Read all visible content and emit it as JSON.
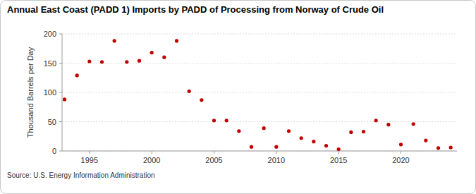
{
  "chart_data": {
    "type": "scatter",
    "title": "Annual East Coast (PADD 1) Imports by PADD of Processing from Norway of Crude Oil",
    "y_label": "Thousand Barrels per Day",
    "source": "Source: U.S. Energy Information Administration",
    "x": [
      1993,
      1994,
      1995,
      1996,
      1997,
      1998,
      1999,
      2000,
      2001,
      2002,
      2003,
      2004,
      2005,
      2006,
      2007,
      2008,
      2009,
      2010,
      2011,
      2012,
      2013,
      2014,
      2015,
      2016,
      2017,
      2018,
      2019,
      2020,
      2021,
      2022,
      2023,
      2024
    ],
    "values": [
      88,
      129,
      153,
      152,
      188,
      152,
      154,
      168,
      160,
      188,
      102,
      87,
      52,
      52,
      34,
      7,
      39,
      7,
      34,
      22,
      16,
      9,
      3,
      32,
      33,
      52,
      45,
      11,
      46,
      18,
      5,
      6
    ],
    "color": "#c00000",
    "marker": "circle",
    "xlim": [
      1992.8,
      2024.5
    ],
    "xticks": [
      1995,
      2000,
      2005,
      2010,
      2015,
      2020
    ],
    "ylim": [
      0,
      200
    ],
    "yticks": [
      0,
      50,
      100,
      150,
      200
    ],
    "grid": true
  }
}
